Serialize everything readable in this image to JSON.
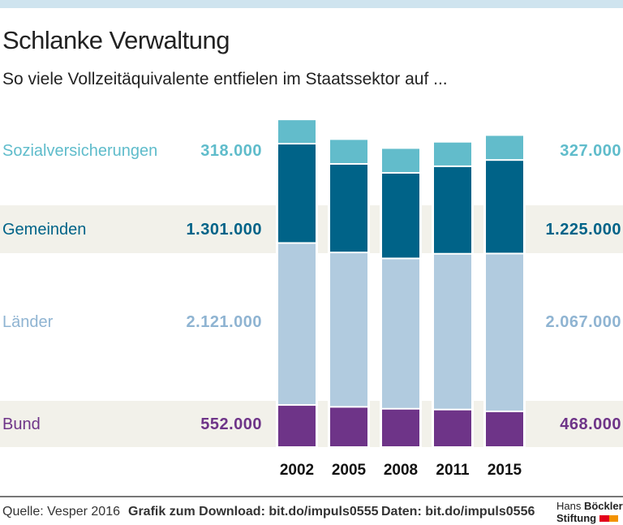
{
  "title": "Schlanke Verwaltung",
  "subtitle": "So viele Vollzeitäquivalente entfielen im Staatssektor auf ...",
  "chart_data": {
    "type": "bar",
    "stacked": true,
    "categories": [
      "2002",
      "2005",
      "2008",
      "2011",
      "2015"
    ],
    "series": [
      {
        "name": "Bund",
        "color": "#6e3488",
        "values": [
          552000,
          527000,
          502000,
          492000,
          468000
        ],
        "label_first": "552.000",
        "label_last": "468.000"
      },
      {
        "name": "Länder",
        "color": "#b1cbdf",
        "values": [
          2121000,
          2022000,
          1969000,
          2040000,
          2067000
        ],
        "label_first": "2.121.000",
        "label_last": "2.067.000"
      },
      {
        "name": "Gemeinden",
        "color": "#006388",
        "values": [
          1301000,
          1160000,
          1121000,
          1146000,
          1225000
        ],
        "label_first": "1.301.000",
        "label_last": "1.225.000"
      },
      {
        "name": "Sozialversicherungen",
        "color": "#62bccb",
        "values": [
          318000,
          325000,
          325000,
          321000,
          327000
        ],
        "label_first": "318.000",
        "label_last": "327.000"
      }
    ],
    "label_colors": {
      "Bund": "#6e3488",
      "Länder": "#8fb4d2",
      "Gemeinden": "#006388",
      "Sozialversicherungen": "#5fbccb"
    }
  },
  "footer": {
    "source": "Quelle: Vesper 2016",
    "download": "Grafik zum Download: bit.do/impuls0555",
    "data": "Daten: bit.do/impuls0556",
    "logo": "Hans Böckler Stiftung"
  }
}
